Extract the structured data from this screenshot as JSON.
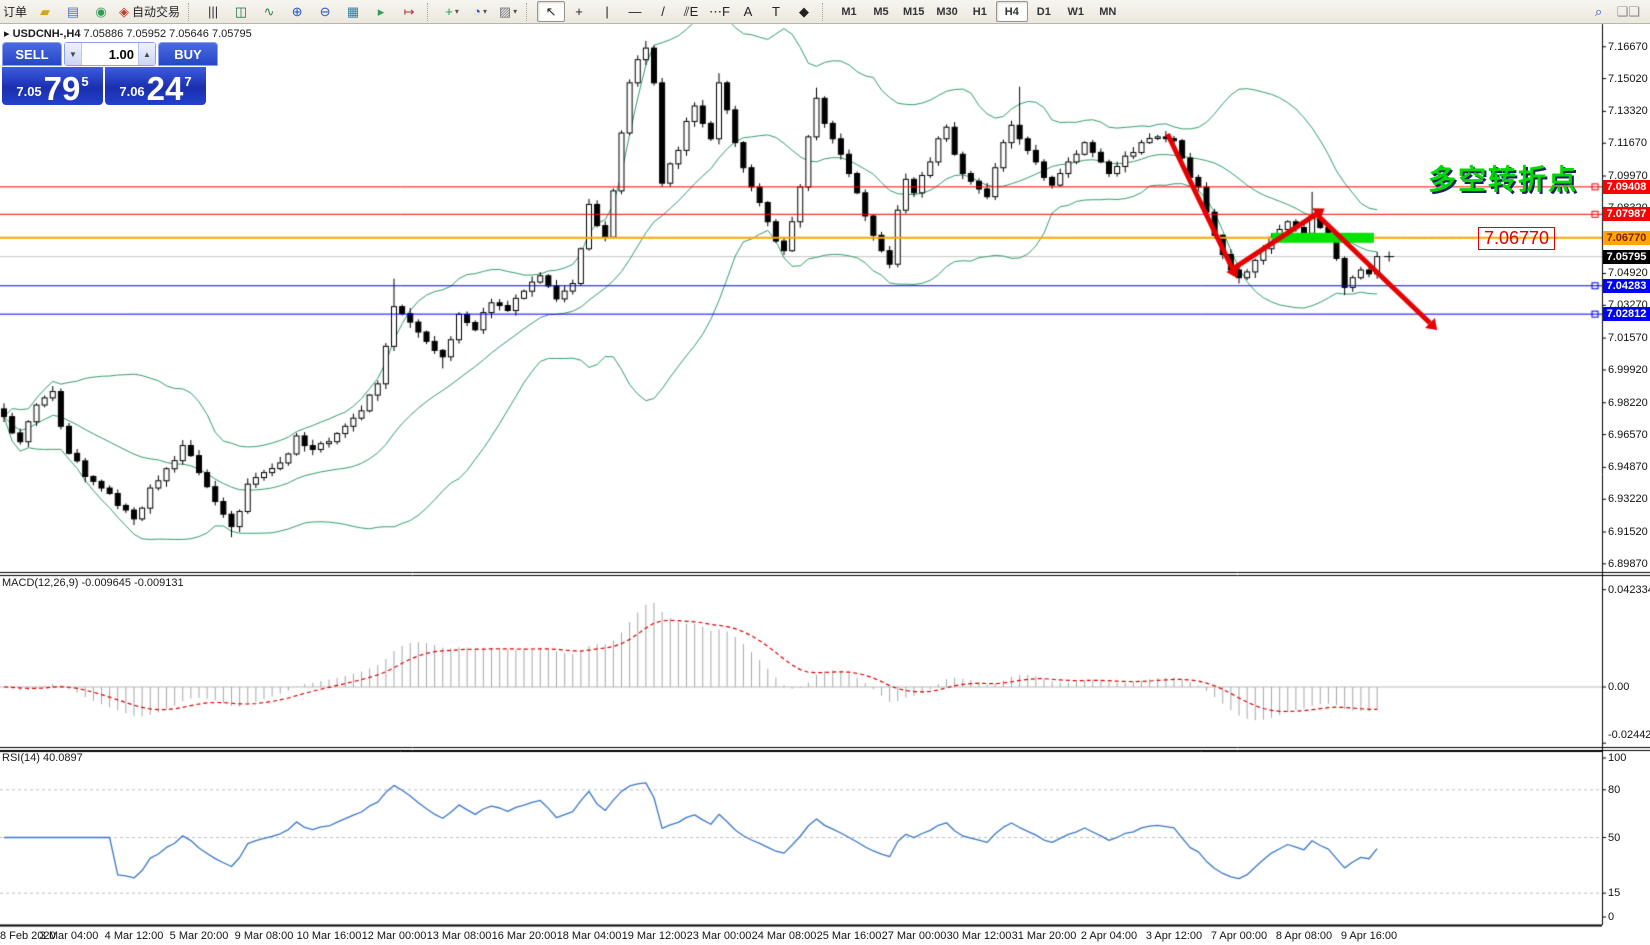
{
  "toolbar": {
    "new_order_label": "新订单",
    "autotrading_label": "自动交易",
    "left_icons": [
      {
        "name": "new-order-icon",
        "glyph": "▰",
        "color": "#d9a514"
      },
      {
        "name": "chart-window-icon",
        "glyph": "▤",
        "color": "#4a78c8"
      },
      {
        "name": "sonar-icon",
        "glyph": "◉",
        "color": "#2f9e55"
      }
    ],
    "chart_icons": [
      {
        "name": "bar-chart-icon",
        "glyph": "|||",
        "color": "#333333"
      },
      {
        "name": "candlestick-chart-icon",
        "glyph": "◫",
        "color": "#1f6e42"
      },
      {
        "name": "line-chart-icon",
        "glyph": "∿",
        "color": "#2f7e4f"
      },
      {
        "name": "zoom-in-icon",
        "glyph": "⊕",
        "color": "#2255cc"
      },
      {
        "name": "zoom-out-icon",
        "glyph": "⊖",
        "color": "#2255cc"
      },
      {
        "name": "tile-windows-icon",
        "glyph": "▦",
        "color": "#2f7ea0"
      },
      {
        "name": "auto-scroll-icon",
        "glyph": "▸",
        "color": "#2f9e55"
      },
      {
        "name": "chart-shift-icon",
        "glyph": "↦",
        "color": "#b03030"
      }
    ],
    "dropdown_icons": [
      {
        "name": "indicators-icon",
        "glyph": "+",
        "color": "#1f9e3f"
      },
      {
        "name": "periods-icon",
        "glyph": "◔",
        "color": "#2255cc"
      },
      {
        "name": "templates-icon",
        "glyph": "▨",
        "color": "#777777"
      }
    ],
    "tool_icons": [
      {
        "name": "cursor-icon",
        "glyph": "↖",
        "color": "#222222",
        "pressed": true
      },
      {
        "name": "crosshair-icon",
        "glyph": "+",
        "color": "#222222"
      },
      {
        "name": "vertical-line-icon",
        "glyph": "|",
        "color": "#222222"
      },
      {
        "name": "horizontal-line-icon",
        "glyph": "—",
        "color": "#222222"
      },
      {
        "name": "trendline-icon",
        "glyph": "/",
        "color": "#222222"
      },
      {
        "name": "equidistant-channel-icon",
        "glyph": "⫽E",
        "color": "#222222"
      },
      {
        "name": "fibonacci-icon",
        "glyph": "⋯F",
        "color": "#222222"
      },
      {
        "name": "text-icon",
        "glyph": "A",
        "color": "#222222"
      },
      {
        "name": "text-label-icon",
        "glyph": "T",
        "color": "#222222"
      },
      {
        "name": "arrows-icon",
        "glyph": "◆",
        "color": "#222222"
      }
    ],
    "right_icons": [
      {
        "name": "search-icon",
        "glyph": "⌕",
        "color": "#2255cc"
      },
      {
        "name": "chat-icon",
        "glyph": "❑❑",
        "color": "#8a8a8a"
      }
    ],
    "timeframes": [
      "M1",
      "M5",
      "M15",
      "M30",
      "H1",
      "H4",
      "D1",
      "W1",
      "MN"
    ],
    "active_timeframe": "H4"
  },
  "quote_panel": {
    "sell_label": "SELL",
    "buy_label": "BUY",
    "volume": "1.00",
    "sell_price_small": "7.05",
    "sell_price_big": "79",
    "sell_price_sup": "5",
    "buy_price_small": "7.06",
    "buy_price_big": "24",
    "buy_price_sup": "7"
  },
  "symbol_line": {
    "pointer": "▸",
    "title": "USDCNH-,H4",
    "ohlc": "7.05886 7.05952 7.05646 7.05795"
  },
  "macd_panel": {
    "label": "MACD(12,26,9)",
    "values": "-0.009645 -0.009131",
    "axis": [
      {
        "text": "0.042334",
        "v": 0.042334
      },
      {
        "text": "0.00",
        "v": 0
      },
      {
        "text": "-0.02442",
        "v": -0.02442
      }
    ]
  },
  "rsi_panel": {
    "label": "RSI(14)",
    "value": "40.0897",
    "axis": [
      {
        "text": "100",
        "v": 100
      },
      {
        "text": "80",
        "v": 80
      },
      {
        "text": "50",
        "v": 50
      },
      {
        "text": "15",
        "v": 15
      },
      {
        "text": "0",
        "v": 0
      }
    ],
    "gridlines": [
      80,
      50,
      15
    ]
  },
  "price_axis": {
    "max_price": 7.1785,
    "min_price": 6.895,
    "ticks": [
      "7.16670",
      "7.15020",
      "7.13320",
      "7.11670",
      "7.09970",
      "7.08320",
      "7.06620",
      "7.04920",
      "7.03270",
      "7.01570",
      "6.99920",
      "6.98220",
      "6.96570",
      "6.94870",
      "6.93220",
      "6.91520",
      "6.89870"
    ],
    "tags": [
      {
        "text": "7.09408",
        "price": 7.09408,
        "bg": "#ff0000",
        "fg": "#ffffff"
      },
      {
        "text": "7.07987",
        "price": 7.07987,
        "bg": "#ff0000",
        "fg": "#ffffff"
      },
      {
        "text": "7.06770",
        "price": 7.0677,
        "bg": "#ffa500",
        "fg": "#7b1f00"
      },
      {
        "text": "7.05795",
        "price": 7.05795,
        "bg": "#000000",
        "fg": "#ffffff"
      },
      {
        "text": "7.04283",
        "price": 7.04283,
        "bg": "#0000ff",
        "fg": "#ffffff"
      },
      {
        "text": "7.02812",
        "price": 7.02812,
        "bg": "#0000ff",
        "fg": "#ffffff"
      }
    ]
  },
  "time_axis": [
    "8 Feb 2020",
    "3 Mar 04:00",
    "4 Mar 12:00",
    "5 Mar 20:00",
    "9 Mar 08:00",
    "10 Mar 16:00",
    "12 Mar 00:00",
    "13 Mar 08:00",
    "16 Mar 20:00",
    "18 Mar 04:00",
    "19 Mar 12:00",
    "23 Mar 00:00",
    "24 Mar 08:00",
    "25 Mar 16:00",
    "27 Mar 00:00",
    "30 Mar 12:00",
    "31 Mar 20:00",
    "2 Apr 04:00",
    "3 Apr 12:00",
    "7 Apr 00:00",
    "8 Apr 08:00",
    "9 Apr 16:00"
  ],
  "annotations": {
    "turning_point_text": "多空转折点",
    "price_callout_text": "7.06770",
    "arrow_color": "#e60000",
    "arrow_points": [
      [
        143.2,
        7.1215
      ],
      [
        151.2,
        7.0515
      ],
      [
        161.5,
        7.08
      ],
      [
        175.5,
        7.0235
      ]
    ],
    "green_zone": {
      "bar1": 156,
      "bar2": 168.6,
      "price": 7.0677,
      "color": "#00e400"
    }
  },
  "chart_data": {
    "type": "candlestick",
    "symbol": "USDCNH-",
    "timeframe": "H4",
    "bars": 170,
    "last_close": 7.05795,
    "ohlc_current": {
      "open": 7.05886,
      "high": 7.05952,
      "low": 7.05646,
      "close": 7.05795
    },
    "close_anchors": [
      [
        0,
        6.975
      ],
      [
        2,
        6.962
      ],
      [
        4,
        6.981
      ],
      [
        6,
        6.988
      ],
      [
        7,
        6.97
      ],
      [
        8,
        6.956
      ],
      [
        10,
        6.944
      ],
      [
        12,
        6.938
      ],
      [
        14,
        6.929
      ],
      [
        16,
        6.922
      ],
      [
        18,
        6.938
      ],
      [
        20,
        6.948
      ],
      [
        22,
        6.96
      ],
      [
        24,
        6.946
      ],
      [
        26,
        6.931
      ],
      [
        28,
        6.918
      ],
      [
        30,
        6.94
      ],
      [
        32,
        6.946
      ],
      [
        34,
        6.951
      ],
      [
        36,
        6.965
      ],
      [
        38,
        6.958
      ],
      [
        40,
        6.962
      ],
      [
        42,
        6.97
      ],
      [
        44,
        6.978
      ],
      [
        46,
        6.992
      ],
      [
        48,
        7.032
      ],
      [
        50,
        7.024
      ],
      [
        52,
        7.014
      ],
      [
        54,
        7.006
      ],
      [
        56,
        7.028
      ],
      [
        58,
        7.02
      ],
      [
        60,
        7.034
      ],
      [
        62,
        7.03
      ],
      [
        64,
        7.04
      ],
      [
        66,
        7.048
      ],
      [
        68,
        7.036
      ],
      [
        70,
        7.044
      ],
      [
        71,
        7.062
      ],
      [
        72,
        7.085
      ],
      [
        73,
        7.074
      ],
      [
        74,
        7.068
      ],
      [
        75,
        7.092
      ],
      [
        76,
        7.122
      ],
      [
        77,
        7.148
      ],
      [
        78,
        7.16
      ],
      [
        79,
        7.166
      ],
      [
        80,
        7.148
      ],
      [
        81,
        7.096
      ],
      [
        82,
        7.106
      ],
      [
        83,
        7.113
      ],
      [
        84,
        7.128
      ],
      [
        85,
        7.136
      ],
      [
        86,
        7.127
      ],
      [
        87,
        7.119
      ],
      [
        88,
        7.148
      ],
      [
        89,
        7.134
      ],
      [
        90,
        7.117
      ],
      [
        91,
        7.104
      ],
      [
        92,
        7.094
      ],
      [
        93,
        7.086
      ],
      [
        94,
        7.076
      ],
      [
        95,
        7.066
      ],
      [
        96,
        7.061
      ],
      [
        97,
        7.076
      ],
      [
        98,
        7.094
      ],
      [
        99,
        7.12
      ],
      [
        100,
        7.14
      ],
      [
        101,
        7.127
      ],
      [
        102,
        7.119
      ],
      [
        103,
        7.111
      ],
      [
        104,
        7.101
      ],
      [
        105,
        7.091
      ],
      [
        106,
        7.079
      ],
      [
        107,
        7.069
      ],
      [
        108,
        7.061
      ],
      [
        109,
        7.054
      ],
      [
        110,
        7.082
      ],
      [
        111,
        7.098
      ],
      [
        112,
        7.091
      ],
      [
        113,
        7.1
      ],
      [
        114,
        7.107
      ],
      [
        115,
        7.119
      ],
      [
        116,
        7.125
      ],
      [
        117,
        7.111
      ],
      [
        118,
        7.101
      ],
      [
        119,
        7.097
      ],
      [
        120,
        7.093
      ],
      [
        121,
        7.089
      ],
      [
        122,
        7.104
      ],
      [
        123,
        7.117
      ],
      [
        124,
        7.126
      ],
      [
        125,
        7.119
      ],
      [
        126,
        7.113
      ],
      [
        127,
        7.107
      ],
      [
        128,
        7.099
      ],
      [
        129,
        7.095
      ],
      [
        130,
        7.101
      ],
      [
        131,
        7.107
      ],
      [
        132,
        7.111
      ],
      [
        133,
        7.117
      ],
      [
        134,
        7.112
      ],
      [
        135,
        7.107
      ],
      [
        136,
        7.101
      ],
      [
        138,
        7.11
      ],
      [
        140,
        7.117
      ],
      [
        142,
        7.12
      ],
      [
        144,
        7.118
      ],
      [
        145,
        7.109
      ],
      [
        146,
        7.099
      ],
      [
        147,
        7.094
      ],
      [
        148,
        7.081
      ],
      [
        149,
        7.069
      ],
      [
        150,
        7.059
      ],
      [
        151,
        7.051
      ],
      [
        152,
        7.047
      ],
      [
        153,
        7.05
      ],
      [
        154,
        7.056
      ],
      [
        155,
        7.062
      ],
      [
        156,
        7.068
      ],
      [
        157,
        7.072
      ],
      [
        158,
        7.076
      ],
      [
        159,
        7.073
      ],
      [
        160,
        7.07
      ],
      [
        161,
        7.078
      ],
      [
        162,
        7.073
      ],
      [
        163,
        7.069
      ],
      [
        164,
        7.057
      ],
      [
        165,
        7.042
      ],
      [
        166,
        7.047
      ],
      [
        167,
        7.051
      ],
      [
        168,
        7.049
      ],
      [
        169,
        7.05795
      ]
    ],
    "wick_overrides": [
      [
        79,
        "h",
        7.1697
      ],
      [
        125,
        "h",
        7.146
      ],
      [
        28,
        "l",
        6.9125
      ],
      [
        165,
        "l",
        7.038
      ],
      [
        161,
        "h",
        7.0915
      ],
      [
        48,
        "h",
        7.0465
      ],
      [
        100,
        "h",
        7.1455
      ],
      [
        88,
        "h",
        7.153
      ],
      [
        54,
        "l",
        7.0
      ]
    ],
    "indicators": [
      {
        "name": "Bollinger Bands",
        "period": 20,
        "deviation": 2,
        "color": "#33a06a"
      },
      {
        "name": "MACD",
        "fast": 12,
        "slow": 26,
        "signal": 9,
        "hist_color": "#a8a8a8",
        "signal_color": "#e00000",
        "current": [
          -0.009645,
          -0.009131
        ]
      },
      {
        "name": "RSI",
        "period": 14,
        "color": "#3b78c8",
        "current": 40.0897
      }
    ],
    "levels": [
      {
        "price": 7.09408,
        "color": "#ff0000",
        "width": 1
      },
      {
        "price": 7.07987,
        "color": "#ff0000",
        "width": 1
      },
      {
        "price": 7.0677,
        "color": "#ffa500",
        "width": 2
      },
      {
        "price": 7.04283,
        "color": "#0000ff",
        "width": 1
      },
      {
        "price": 7.02812,
        "color": "#0000ff",
        "width": 1
      }
    ],
    "bid_line": {
      "price": 7.05795,
      "color": "#c8c8c8"
    },
    "colors": {
      "bull_body": "#ffffff",
      "bear_body": "#000000",
      "outline": "#000000",
      "axis": "#000000",
      "grid_dash": "#c0c0c0"
    }
  }
}
